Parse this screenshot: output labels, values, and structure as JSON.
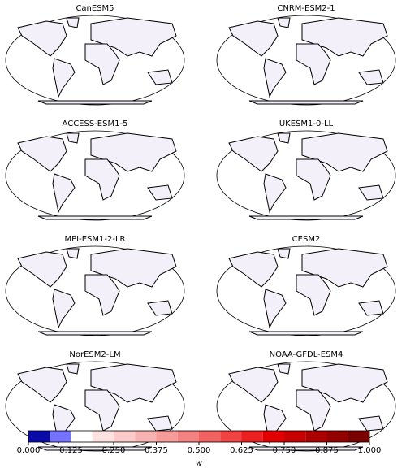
{
  "panels": [
    {
      "title": "CanESM5"
    },
    {
      "title": "CNRM-ESM2-1"
    },
    {
      "title": "ACCESS-ESM1-5"
    },
    {
      "title": "UKESM1-0-LL"
    },
    {
      "title": "MPI-ESM1-2-LR"
    },
    {
      "title": "CESM2"
    },
    {
      "title": "NorESM2-LM"
    },
    {
      "title": "NOAA-GFDL-ESM4"
    }
  ],
  "colorbar": {
    "label": "w",
    "lim": [
      0,
      1
    ],
    "bounds": [
      0,
      0.0625,
      0.125,
      0.1875,
      0.25,
      0.3125,
      0.375,
      0.4375,
      0.5,
      0.5625,
      0.625,
      0.6875,
      0.75,
      0.8125,
      0.875,
      0.9375,
      1
    ],
    "colors": [
      "#0a0aa8",
      "#7373ff",
      "#ffffff",
      "#fde2e2",
      "#fbcaca",
      "#f9b2b2",
      "#f79a9a",
      "#f48282",
      "#f26262",
      "#f04242",
      "#ec2020",
      "#e00000",
      "#c60000",
      "#ac0000",
      "#930000",
      "#7a0000"
    ],
    "ticks": [
      {
        "value": 0,
        "label": "0.000"
      },
      {
        "value": 0.125,
        "label": "0.125"
      },
      {
        "value": 0.25,
        "label": "0.250"
      },
      {
        "value": 0.375,
        "label": "0.375"
      },
      {
        "value": 0.5,
        "label": "0.500"
      },
      {
        "value": 0.625,
        "label": "0.625"
      },
      {
        "value": 0.75,
        "label": "0.750"
      },
      {
        "value": 0.875,
        "label": "0.875"
      },
      {
        "value": 1,
        "label": "1.000"
      }
    ]
  }
}
